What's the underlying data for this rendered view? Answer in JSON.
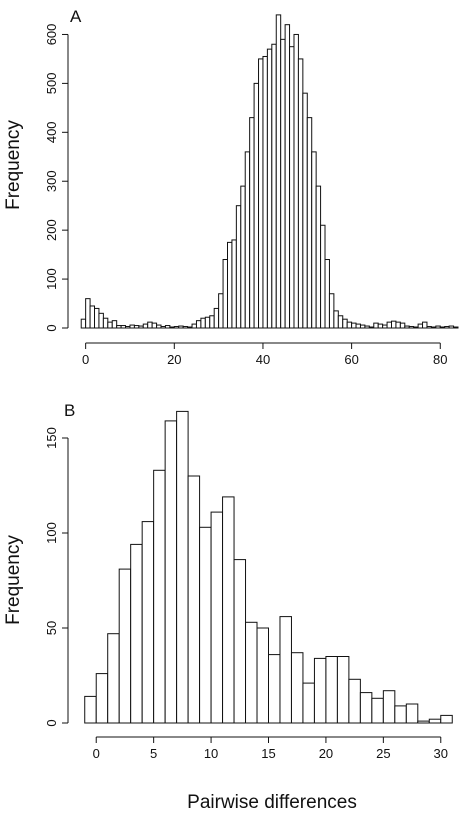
{
  "chart_data": [
    {
      "type": "bar",
      "panel_label": "A",
      "ylabel": "Frequency",
      "xlabel": "",
      "xlim": [
        -1.5,
        84
      ],
      "ylim": [
        0,
        650
      ],
      "x_ticks": [
        0,
        20,
        40,
        60,
        80
      ],
      "y_ticks": [
        0,
        100,
        200,
        300,
        400,
        500,
        600
      ],
      "bin_width": 1,
      "bins_start": [
        -1,
        0,
        1,
        2,
        3,
        4,
        5,
        6,
        7,
        8,
        9,
        10,
        11,
        12,
        13,
        14,
        15,
        16,
        17,
        18,
        19,
        20,
        21,
        22,
        23,
        24,
        25,
        26,
        27,
        28,
        29,
        30,
        31,
        32,
        33,
        34,
        35,
        36,
        37,
        38,
        39,
        40,
        41,
        42,
        43,
        44,
        45,
        46,
        47,
        48,
        49,
        50,
        51,
        52,
        53,
        54,
        55,
        56,
        57,
        58,
        59,
        60,
        61,
        62,
        63,
        64,
        65,
        66,
        67,
        68,
        69,
        70,
        71,
        72,
        73,
        74,
        75,
        76,
        77,
        78,
        79,
        80,
        81,
        82,
        83
      ],
      "values": [
        18,
        60,
        45,
        40,
        30,
        20,
        12,
        15,
        5,
        5,
        3,
        6,
        5,
        4,
        8,
        12,
        10,
        6,
        3,
        5,
        2,
        3,
        4,
        3,
        2,
        8,
        15,
        20,
        22,
        25,
        40,
        70,
        140,
        175,
        180,
        250,
        290,
        360,
        430,
        500,
        550,
        555,
        570,
        580,
        640,
        590,
        620,
        575,
        600,
        550,
        480,
        430,
        360,
        290,
        210,
        140,
        70,
        35,
        25,
        18,
        12,
        10,
        8,
        6,
        4,
        2,
        10,
        8,
        6,
        12,
        14,
        12,
        10,
        4,
        3,
        2,
        8,
        12,
        3,
        2,
        4,
        2,
        3,
        4,
        2
      ],
      "grid": false,
      "legend": "none"
    },
    {
      "type": "bar",
      "panel_label": "B",
      "ylabel": "Frequency",
      "xlabel": "Pairwise differences",
      "xlim": [
        -1.5,
        31.5
      ],
      "ylim": [
        0,
        170
      ],
      "x_ticks": [
        0,
        5,
        10,
        15,
        20,
        25,
        30
      ],
      "y_ticks": [
        0,
        50,
        100,
        150
      ],
      "bin_width": 1,
      "bins_start": [
        -1,
        0,
        1,
        2,
        3,
        4,
        5,
        6,
        7,
        8,
        9,
        10,
        11,
        12,
        13,
        14,
        15,
        16,
        17,
        18,
        19,
        20,
        21,
        22,
        23,
        24,
        25,
        26,
        27,
        28,
        29,
        30
      ],
      "values": [
        14,
        26,
        47,
        81,
        94,
        106,
        133,
        159,
        164,
        130,
        103,
        111,
        119,
        86,
        53,
        50,
        36,
        56,
        37,
        21,
        34,
        35,
        35,
        23,
        16,
        13,
        17,
        9,
        10,
        1,
        2,
        4
      ],
      "grid": false,
      "legend": "none"
    }
  ]
}
